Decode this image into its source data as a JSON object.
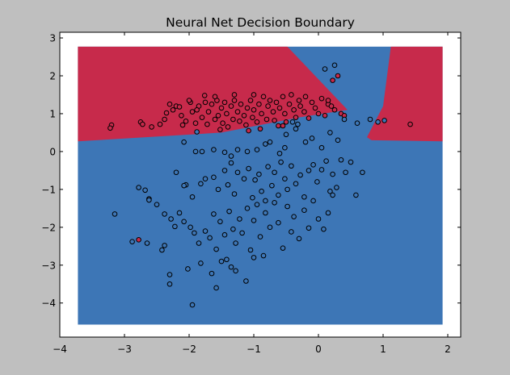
{
  "chart_data": {
    "type": "scatter",
    "title": "Neural Net Decision Boundary",
    "xlabel": "",
    "ylabel": "",
    "xlim": [
      -4,
      2.2
    ],
    "ylim": [
      -4.9,
      3.15
    ],
    "x_ticks": [
      -4,
      -3,
      -2,
      -1,
      0,
      1,
      2
    ],
    "x_tick_labels": [
      "−4",
      "−3",
      "−2",
      "−1",
      "0",
      "1",
      "2"
    ],
    "y_ticks": [
      -4,
      -3,
      -2,
      -1,
      0,
      1,
      2,
      3
    ],
    "y_tick_labels": [
      "−4",
      "−3",
      "−2",
      "−1",
      "0",
      "1",
      "2",
      "3"
    ],
    "grid": false,
    "colors": {
      "class_0": "#c72a4b",
      "class_1": "#3d76b6",
      "figure_bg": "#bfbfbf",
      "axes_bg": "#ffffff"
    },
    "decision_regions": {
      "x_range": [
        -3.72,
        1.92
      ],
      "y_range": [
        -4.57,
        2.77
      ],
      "class_0_region": {
        "left": [
          [
            -3.72,
            2.77
          ],
          [
            -0.48,
            2.77
          ],
          [
            0.45,
            1.1
          ],
          [
            -0.3,
            0.9
          ],
          [
            -1.5,
            0.5
          ],
          [
            -3.72,
            0.27
          ]
        ],
        "right": [
          [
            1.12,
            2.77
          ],
          [
            1.92,
            2.77
          ],
          [
            1.92,
            0.27
          ],
          [
            0.82,
            0.3
          ],
          [
            0.75,
            0.38
          ],
          [
            1.0,
            1.2
          ]
        ]
      }
    },
    "series": [
      {
        "class": 0,
        "points": [
          [
            -3.2,
            0.7
          ],
          [
            -3.22,
            0.62
          ],
          [
            -2.75,
            0.78
          ],
          [
            -2.72,
            0.72
          ],
          [
            -2.58,
            0.65
          ],
          [
            -2.45,
            0.72
          ],
          [
            -2.38,
            0.85
          ],
          [
            -2.35,
            1.02
          ],
          [
            -2.25,
            1.1
          ],
          [
            -2.2,
            1.2
          ],
          [
            -2.15,
            1.18
          ],
          [
            -2.12,
            0.95
          ],
          [
            -2.1,
            0.7
          ],
          [
            -2.05,
            0.8
          ],
          [
            -1.98,
            1.3
          ],
          [
            -1.95,
            1.05
          ],
          [
            -1.9,
            0.75
          ],
          [
            -1.85,
            1.2
          ],
          [
            -1.8,
            0.9
          ],
          [
            -1.75,
            1.3
          ],
          [
            -1.72,
            0.72
          ],
          [
            -1.7,
            1.05
          ],
          [
            -1.65,
            1.25
          ],
          [
            -1.6,
            0.85
          ],
          [
            -1.57,
            1.35
          ],
          [
            -1.55,
            0.95
          ],
          [
            -1.5,
            1.15
          ],
          [
            -1.48,
            0.75
          ],
          [
            -1.45,
            1.3
          ],
          [
            -1.42,
            1.0
          ],
          [
            -1.4,
            0.65
          ],
          [
            -1.35,
            1.2
          ],
          [
            -1.32,
            0.85
          ],
          [
            -1.3,
            1.35
          ],
          [
            -1.25,
            1.05
          ],
          [
            -1.22,
            0.8
          ],
          [
            -1.2,
            1.25
          ],
          [
            -1.15,
            0.95
          ],
          [
            -1.12,
            0.7
          ],
          [
            -1.1,
            1.15
          ],
          [
            -1.05,
            1.35
          ],
          [
            -1.02,
            0.9
          ],
          [
            -1.0,
            1.1
          ],
          [
            -0.95,
            0.78
          ],
          [
            -0.92,
            1.25
          ],
          [
            -0.88,
            1.0
          ],
          [
            -0.85,
            1.45
          ],
          [
            -0.8,
            0.85
          ],
          [
            -0.78,
            1.2
          ],
          [
            -0.75,
            1.35
          ],
          [
            -0.7,
            1.05
          ],
          [
            -0.68,
            0.82
          ],
          [
            -0.65,
            1.3
          ],
          [
            -0.6,
            1.15
          ],
          [
            -0.55,
            1.45
          ],
          [
            -0.52,
            1.0
          ],
          [
            -0.5,
            0.78
          ],
          [
            -0.45,
            1.25
          ],
          [
            -0.42,
            1.5
          ],
          [
            -0.38,
            1.1
          ],
          [
            -0.35,
            0.9
          ],
          [
            -0.3,
            1.35
          ],
          [
            -0.28,
            1.2
          ],
          [
            -0.22,
            1.05
          ],
          [
            -0.2,
            1.45
          ],
          [
            -0.15,
            0.88
          ],
          [
            -0.1,
            1.3
          ],
          [
            -0.05,
            1.15
          ],
          [
            0.0,
            1.0
          ],
          [
            0.05,
            1.4
          ],
          [
            0.1,
            0.95
          ],
          [
            0.15,
            1.25
          ],
          [
            0.2,
            1.2
          ],
          [
            0.25,
            1.1
          ],
          [
            0.35,
            1.0
          ],
          [
            0.4,
            0.95
          ],
          [
            0.3,
            2.0
          ],
          [
            0.22,
            1.88
          ],
          [
            0.15,
            1.35
          ],
          [
            -1.6,
            1.45
          ],
          [
            -1.3,
            1.5
          ],
          [
            -1.0,
            1.5
          ],
          [
            -2.3,
            1.25
          ],
          [
            -0.9,
            0.6
          ],
          [
            -0.62,
            0.68
          ],
          [
            1.42,
            0.72
          ],
          [
            -2.78,
            -2.33
          ],
          [
            -0.55,
            0.68
          ],
          [
            -1.76,
            1.48
          ],
          [
            -1.88,
            1.1
          ],
          [
            -2.0,
            1.35
          ],
          [
            -1.52,
            0.58
          ],
          [
            -1.08,
            0.55
          ]
        ]
      },
      {
        "class": 1,
        "points": [
          [
            0.1,
            2.18
          ],
          [
            0.25,
            2.28
          ],
          [
            0.8,
            0.85
          ],
          [
            0.92,
            0.78
          ],
          [
            1.02,
            0.82
          ],
          [
            0.6,
            0.75
          ],
          [
            0.4,
            0.85
          ],
          [
            0.18,
            0.5
          ],
          [
            0.3,
            0.3
          ],
          [
            0.05,
            0.1
          ],
          [
            -0.1,
            0.35
          ],
          [
            -0.2,
            0.25
          ],
          [
            -0.35,
            0.6
          ],
          [
            -0.5,
            0.45
          ],
          [
            -0.52,
            0.1
          ],
          [
            -0.6,
            -0.05
          ],
          [
            -0.75,
            0.25
          ],
          [
            -0.82,
            0.2
          ],
          [
            -0.95,
            0.05
          ],
          [
            -1.1,
            0.0
          ],
          [
            -1.25,
            0.05
          ],
          [
            -1.35,
            -0.12
          ],
          [
            -1.45,
            -0.02
          ],
          [
            -1.62,
            0.05
          ],
          [
            -1.8,
            0.0
          ],
          [
            -1.9,
            0.0
          ],
          [
            -2.08,
            0.25
          ],
          [
            -2.2,
            -0.55
          ],
          [
            -2.05,
            -0.88
          ],
          [
            -1.95,
            -1.2
          ],
          [
            -1.82,
            -0.85
          ],
          [
            -1.75,
            -0.72
          ],
          [
            -1.62,
            -0.68
          ],
          [
            -1.55,
            -1.0
          ],
          [
            -1.45,
            -0.5
          ],
          [
            -1.4,
            -0.88
          ],
          [
            -1.35,
            -0.3
          ],
          [
            -1.3,
            -1.12
          ],
          [
            -1.25,
            -0.55
          ],
          [
            -1.15,
            -0.72
          ],
          [
            -1.08,
            -0.45
          ],
          [
            -1.02,
            -1.22
          ],
          [
            -0.98,
            -0.75
          ],
          [
            -0.92,
            -0.6
          ],
          [
            -0.88,
            -1.05
          ],
          [
            -0.82,
            -1.3
          ],
          [
            -0.78,
            -0.4
          ],
          [
            -0.72,
            -0.9
          ],
          [
            -0.68,
            -0.55
          ],
          [
            -0.62,
            -1.15
          ],
          [
            -0.58,
            -0.28
          ],
          [
            -0.52,
            -0.72
          ],
          [
            -0.48,
            -1.0
          ],
          [
            -0.42,
            -0.38
          ],
          [
            -0.35,
            -0.85
          ],
          [
            -0.28,
            -0.62
          ],
          [
            -0.22,
            -1.2
          ],
          [
            -0.15,
            -0.5
          ],
          [
            -0.08,
            -0.35
          ],
          [
            -0.02,
            -0.8
          ],
          [
            0.05,
            -0.48
          ],
          [
            0.12,
            -0.25
          ],
          [
            0.18,
            -1.05
          ],
          [
            0.22,
            -0.6
          ],
          [
            0.28,
            -0.95
          ],
          [
            0.35,
            -0.22
          ],
          [
            0.42,
            -0.55
          ],
          [
            0.5,
            -0.28
          ],
          [
            0.58,
            -1.15
          ],
          [
            0.68,
            -0.55
          ],
          [
            -2.62,
            -1.25
          ],
          [
            -2.62,
            -1.28
          ],
          [
            -2.5,
            -1.4
          ],
          [
            -2.38,
            -1.65
          ],
          [
            -2.28,
            -1.78
          ],
          [
            -2.22,
            -1.98
          ],
          [
            -2.15,
            -1.62
          ],
          [
            -2.08,
            -1.85
          ],
          [
            -1.98,
            -2.0
          ],
          [
            -1.92,
            -2.15
          ],
          [
            -1.85,
            -2.42
          ],
          [
            -1.75,
            -2.1
          ],
          [
            -1.68,
            -2.28
          ],
          [
            -1.62,
            -1.65
          ],
          [
            -1.58,
            -2.58
          ],
          [
            -1.52,
            -1.85
          ],
          [
            -1.45,
            -2.2
          ],
          [
            -1.38,
            -1.58
          ],
          [
            -1.32,
            -2.05
          ],
          [
            -1.28,
            -2.42
          ],
          [
            -1.22,
            -1.78
          ],
          [
            -1.18,
            -2.15
          ],
          [
            -1.1,
            -1.5
          ],
          [
            -1.05,
            -2.6
          ],
          [
            -1.0,
            -1.82
          ],
          [
            -0.95,
            -1.4
          ],
          [
            -0.9,
            -2.25
          ],
          [
            -0.82,
            -1.62
          ],
          [
            -0.75,
            -2.0
          ],
          [
            -0.68,
            -1.35
          ],
          [
            -0.62,
            -1.88
          ],
          [
            -0.55,
            -2.55
          ],
          [
            -0.48,
            -1.45
          ],
          [
            -0.42,
            -2.12
          ],
          [
            -0.38,
            -1.72
          ],
          [
            -0.3,
            -2.3
          ],
          [
            -0.22,
            -1.55
          ],
          [
            -0.15,
            -2.02
          ],
          [
            -0.08,
            -1.3
          ],
          [
            0.0,
            -1.78
          ],
          [
            0.08,
            -2.05
          ],
          [
            0.15,
            -1.62
          ],
          [
            0.22,
            -1.15
          ],
          [
            -2.88,
            -2.38
          ],
          [
            -2.65,
            -2.42
          ],
          [
            -2.38,
            -2.48
          ],
          [
            -2.3,
            -3.25
          ],
          [
            -2.3,
            -3.5
          ],
          [
            -2.02,
            -3.1
          ],
          [
            -1.95,
            -4.05
          ],
          [
            -1.82,
            -2.95
          ],
          [
            -1.65,
            -3.22
          ],
          [
            -1.58,
            -3.6
          ],
          [
            -1.42,
            -2.85
          ],
          [
            -1.35,
            -3.05
          ],
          [
            -1.28,
            -3.15
          ],
          [
            -1.12,
            -3.42
          ],
          [
            -1.0,
            -2.8
          ],
          [
            -0.85,
            -2.75
          ],
          [
            -1.5,
            -2.9
          ],
          [
            -2.42,
            -2.6
          ],
          [
            -3.15,
            -1.65
          ],
          [
            -2.78,
            -0.95
          ],
          [
            -2.68,
            -1.02
          ],
          [
            -0.4,
            0.78
          ],
          [
            -0.32,
            0.72
          ],
          [
            -1.88,
            0.52
          ],
          [
            -2.08,
            -0.9
          ]
        ]
      }
    ]
  }
}
